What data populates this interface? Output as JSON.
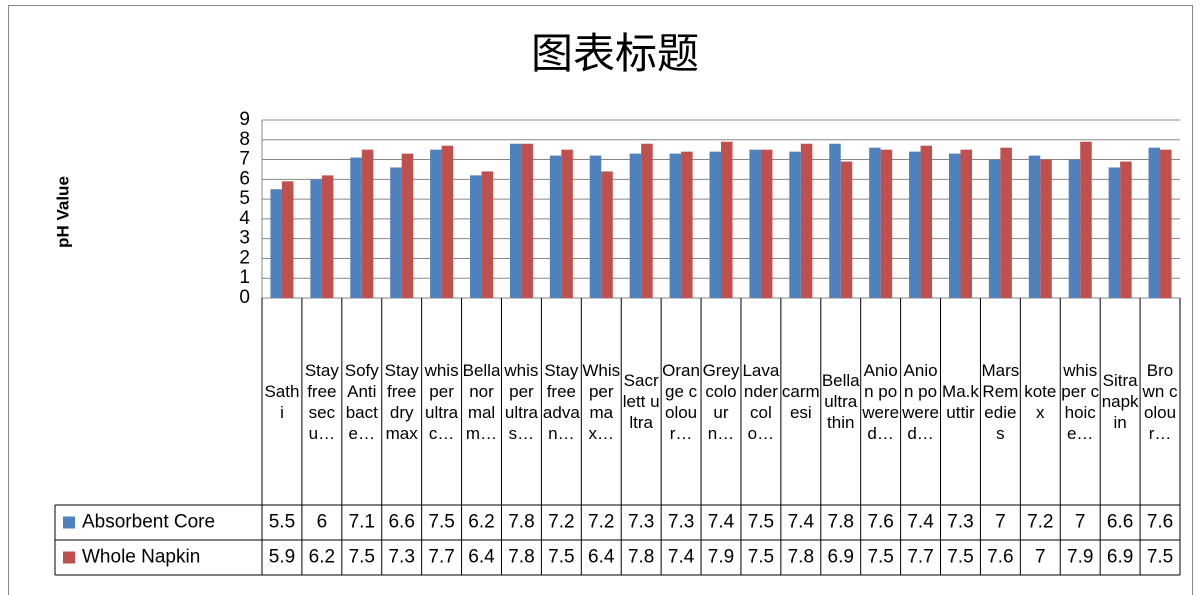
{
  "chart_data": {
    "type": "bar",
    "title": "图表标题",
    "y_label": "pH Value",
    "categories": [
      "Sathi",
      "Stay free secu…",
      "Sofy Antibacte…",
      "Stayfree dry max",
      "whisper ultra c…",
      "Bella normal m…",
      "whisper ultra s…",
      "Stayfree advan…",
      "Whisper max…",
      "Sacrlett ultra",
      "Orange colour…",
      "Grey colour n…",
      "Lavander colo…",
      "carmesi",
      "Bella ultra thin",
      "Anion powered…",
      "Anion powered…",
      "Ma.kuttir",
      "Mars Remedies",
      "kotex",
      "whisper choice…",
      "Sitra napkin",
      "Brown colour…"
    ],
    "series": [
      {
        "name": "Absorbent Core",
        "color": "#4f81bd",
        "values": [
          5.5,
          6,
          7.1,
          6.6,
          7.5,
          6.2,
          7.8,
          7.2,
          7.2,
          7.3,
          7.3,
          7.4,
          7.5,
          7.4,
          7.8,
          7.6,
          7.4,
          7.3,
          7,
          7.2,
          7,
          6.6,
          7.6
        ]
      },
      {
        "name": "Whole Napkin",
        "color": "#c0504d",
        "values": [
          5.9,
          6.2,
          7.5,
          7.3,
          7.7,
          6.4,
          7.8,
          7.5,
          6.4,
          7.8,
          7.4,
          7.9,
          7.5,
          7.8,
          6.9,
          7.5,
          7.7,
          7.5,
          7.6,
          7,
          7.9,
          6.9,
          7.5
        ]
      }
    ],
    "ylim": [
      0,
      9
    ],
    "yticks": [
      0,
      1,
      2,
      3,
      4,
      5,
      6,
      7,
      8,
      9
    ],
    "grid": true,
    "data_table": true
  }
}
